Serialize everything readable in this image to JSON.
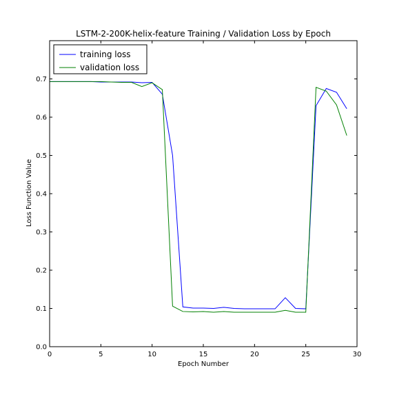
{
  "chart_data": {
    "type": "line",
    "title": "LSTM-2-200K-helix-feature Training / Validation Loss by Epoch",
    "xlabel": "Epoch Number",
    "ylabel": "Loss Function Value",
    "xlim": [
      0,
      30
    ],
    "ylim": [
      0,
      0.8
    ],
    "xticks": [
      0,
      5,
      10,
      15,
      20,
      25,
      30
    ],
    "yticks": [
      0.0,
      0.1,
      0.2,
      0.3,
      0.4,
      0.5,
      0.6,
      0.7
    ],
    "grid": false,
    "legend_position": "top-left",
    "x": [
      0,
      1,
      2,
      3,
      4,
      5,
      6,
      7,
      8,
      9,
      10,
      11,
      12,
      13,
      14,
      15,
      16,
      17,
      18,
      19,
      20,
      21,
      22,
      23,
      24,
      25,
      26,
      27,
      28,
      29
    ],
    "series": [
      {
        "name": "training loss",
        "color": "#0000ff",
        "values": [
          0.693,
          0.693,
          0.693,
          0.693,
          0.693,
          0.692,
          0.692,
          0.692,
          0.692,
          0.69,
          0.691,
          0.66,
          0.5,
          0.104,
          0.101,
          0.101,
          0.1,
          0.103,
          0.1,
          0.099,
          0.099,
          0.099,
          0.099,
          0.128,
          0.1,
          0.099,
          0.63,
          0.675,
          0.665,
          0.622
        ]
      },
      {
        "name": "validation loss",
        "color": "#008000",
        "values": [
          0.693,
          0.693,
          0.693,
          0.693,
          0.693,
          0.693,
          0.692,
          0.691,
          0.691,
          0.68,
          0.69,
          0.672,
          0.106,
          0.092,
          0.091,
          0.092,
          0.09,
          0.092,
          0.09,
          0.09,
          0.09,
          0.09,
          0.09,
          0.095,
          0.09,
          0.09,
          0.678,
          0.668,
          0.632,
          0.552
        ]
      }
    ]
  }
}
